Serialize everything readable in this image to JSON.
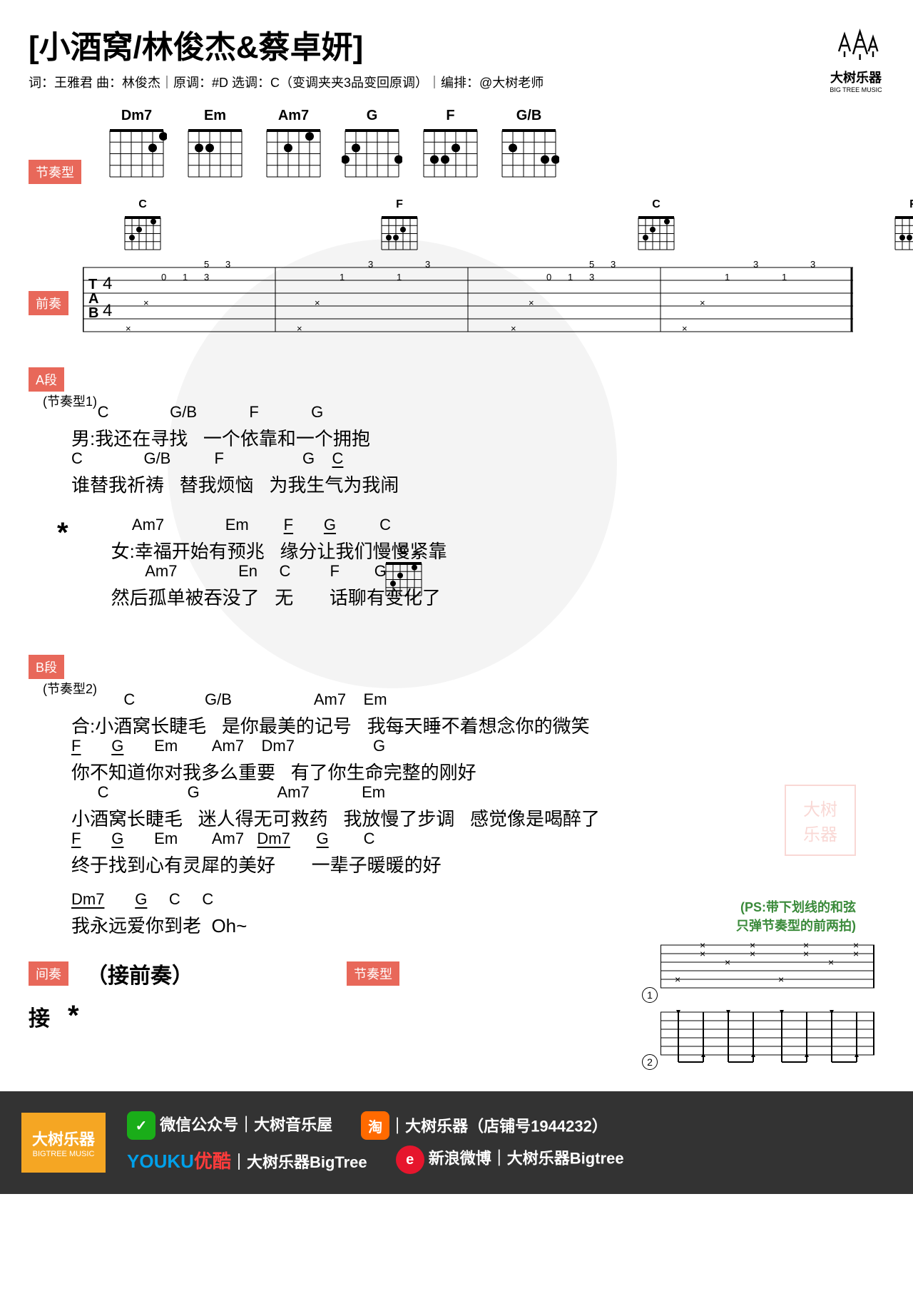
{
  "title": "[小酒窝/林俊杰&蔡卓妍]",
  "meta": "词：王雅君 曲：林俊杰｜原调：#D 选调：C（变调夹夹3品变回原调）｜编排：@大树老师",
  "logo": {
    "main": "大树乐器",
    "sub": "BIG TREE MUSIC"
  },
  "labels": {
    "rhythm": "节奏型",
    "intro": "前奏",
    "a": "A段",
    "b": "B段",
    "interlude": "间奏",
    "next": "接"
  },
  "notes": {
    "a_sub": "(节奏型1)",
    "b_sub": "(节奏型2)",
    "interlude_text": "（接前奏）",
    "ps": "(PS:带下划线的和弦\n只弹节奏型的前两拍)"
  },
  "chord_diagrams": [
    "Dm7",
    "Em",
    "Am7",
    "G",
    "F",
    "G/B"
  ],
  "intro_chords": [
    "C",
    "F",
    "C",
    "F"
  ],
  "sections": {
    "a": [
      {
        "chords": "      C              G/B            F            G",
        "text": "男:我还在寻找   一个依靠和一个拥抱"
      },
      {
        "chords": "C              G/B          F                  G    C",
        "text": "谁替我祈祷   替我烦恼   为我生气为我闹",
        "underline": [
          4
        ]
      }
    ],
    "star": [
      {
        "chords": "     Am7              Em        F       G          C",
        "text": "女:幸福开始有预兆   缘分让我们慢慢紧靠",
        "underline": [
          2,
          3
        ]
      },
      {
        "chords": "        Am7              En     C         F        G",
        "text": "然后孤单被吞没了   无       话聊有变化了",
        "inline_chord": true
      }
    ],
    "b": [
      {
        "chords": "            C                G/B                   Am7    Em",
        "text": "合:小酒窝长睫毛   是你最美的记号   我每天睡不着想念你的微笑"
      },
      {
        "chords": "F       G       Em        Am7    Dm7                  G",
        "text": "你不知道你对我多么重要   有了你生命完整的刚好",
        "underline": [
          0,
          1
        ]
      },
      {
        "chords": "      C                  G                  Am7            Em",
        "text": "小酒窝长睫毛   迷人得无可救药   我放慢了步调   感觉像是喝醉了"
      },
      {
        "chords": "F       G       Em        Am7   Dm7      G        C",
        "text": "终于找到心有灵犀的美好       一辈子暖暖的好",
        "underline": [
          0,
          1,
          4,
          5
        ]
      }
    ],
    "outro": [
      {
        "chords": "Dm7       G     C     C",
        "text": "我永远爱你到老  Oh~",
        "underline": [
          0,
          1
        ]
      }
    ]
  },
  "footer": {
    "brand": "大树乐器",
    "brand_sub": "BIGTREE MUSIC",
    "wechat": "微信公众号｜大树音乐屋",
    "taobao": "｜大树乐器（店铺号1944232）",
    "youku_pre": "YOUKU",
    "youku_cn": "优酷",
    "youku_txt": "｜大树乐器BigTree",
    "weibo": "新浪微博｜大树乐器Bigtree"
  },
  "colors": {
    "badge": "#e8685a",
    "footer_bg": "#333",
    "orange": "#f5a623",
    "green": "#3a8a3a"
  }
}
